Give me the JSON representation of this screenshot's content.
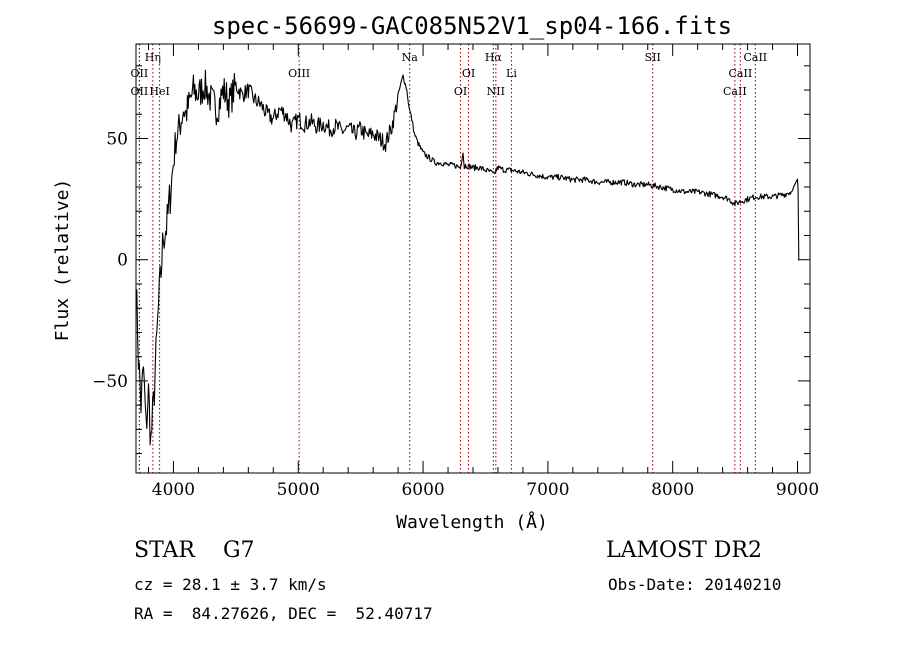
{
  "chart_data": {
    "type": "line",
    "title": "spec-56699-GAC085N52V1_sp04-166.fits",
    "xlabel": "Wavelength (Å)",
    "ylabel": "Flux (relative)",
    "xlim": [
      3700,
      9100
    ],
    "ylim": [
      -88,
      89
    ],
    "x_ticks": [
      4000,
      5000,
      6000,
      7000,
      8000,
      9000
    ],
    "x_tick_labels": [
      "4000",
      "5000",
      "6000",
      "7000",
      "8000",
      "9000"
    ],
    "y_ticks": [
      -50,
      0,
      50
    ],
    "y_tick_labels": [
      "−50",
      "0",
      "50"
    ],
    "line_color": "#000000",
    "marker_color": "#8b0000",
    "series": [
      {
        "x": [
          3700,
          3720,
          3740,
          3760,
          3780,
          3800,
          3820,
          3840,
          3860,
          3880,
          3900,
          3920,
          3950,
          3980,
          4000,
          4020,
          4050,
          4080,
          4100,
          4130,
          4160,
          4200,
          4250,
          4300,
          4350,
          4400,
          4450,
          4500,
          4550,
          4600,
          4650,
          4700,
          4750,
          4800,
          4850,
          4900,
          4950,
          5000,
          5050,
          5100,
          5150,
          5200,
          5250,
          5300,
          5350,
          5400,
          5450,
          5500,
          5550,
          5600,
          5650,
          5700,
          5750,
          5780,
          5810,
          5840,
          5870,
          5890,
          5910,
          5930,
          5960,
          6000,
          6050,
          6100,
          6150,
          6200,
          6250,
          6300,
          6320,
          6330,
          6340,
          6400,
          6450,
          6500,
          6550,
          6563,
          6600,
          6650,
          6700,
          6800,
          6900,
          7000,
          7100,
          7200,
          7300,
          7400,
          7500,
          7600,
          7700,
          7800,
          7900,
          8000,
          8100,
          8200,
          8300,
          8400,
          8450,
          8498,
          8542,
          8600,
          8662,
          8700,
          8800,
          8900,
          8950,
          9000,
          9005,
          9010
        ],
        "y": [
          -10,
          -40,
          -60,
          -45,
          -70,
          -55,
          -75,
          -60,
          -40,
          -20,
          -5,
          10,
          15,
          30,
          40,
          50,
          55,
          62,
          60,
          65,
          70,
          68,
          72,
          66,
          62,
          70,
          65,
          72,
          68,
          70,
          66,
          64,
          60,
          58,
          62,
          60,
          55,
          58,
          56,
          57,
          55,
          56,
          54,
          55,
          53,
          54,
          52,
          54,
          51,
          52,
          50,
          48,
          55,
          62,
          70,
          76,
          70,
          62,
          58,
          52,
          48,
          44,
          42,
          40,
          40,
          39,
          39,
          38,
          45,
          38,
          39,
          38,
          38,
          37,
          36,
          35,
          38,
          37,
          37,
          36,
          35,
          34,
          34,
          33,
          33,
          32,
          32,
          32,
          31,
          31,
          30,
          29,
          28,
          28,
          27,
          26,
          25,
          23,
          24,
          25,
          26,
          26,
          26,
          27,
          28,
          33,
          28,
          0
        ]
      }
    ],
    "line_markers": [
      {
        "name": "OII",
        "x": 3727,
        "row": 2
      },
      {
        "name": "OII",
        "x": 3727,
        "row": 3
      },
      {
        "name": "Hη",
        "x": 3835,
        "row": 1
      },
      {
        "name": "HeI",
        "x": 3889,
        "row": 3
      },
      {
        "name": "OIII",
        "x": 5007,
        "row": 2
      },
      {
        "name": "Na",
        "x": 5893,
        "row": 1
      },
      {
        "name": "OI",
        "x": 6300,
        "row": 3
      },
      {
        "name": "OI",
        "x": 6364,
        "row": 2
      },
      {
        "name": "Hα",
        "x": 6563,
        "row": 1
      },
      {
        "name": "NII",
        "x": 6583,
        "row": 3
      },
      {
        "name": "Li",
        "x": 6708,
        "row": 2
      },
      {
        "name": "SII",
        "x": 7840,
        "row": 1
      },
      {
        "name": "CaII",
        "x": 8498,
        "row": 3
      },
      {
        "name": "CaII",
        "x": 8542,
        "row": 2
      },
      {
        "name": "CaII",
        "x": 8662,
        "row": 1
      }
    ]
  },
  "info": {
    "object_class": "STAR    G7",
    "survey": "LAMOST DR2",
    "redshift": "cz = 28.1 ± 3.7 km/s",
    "obs_date": "Obs-Date: 20140210",
    "coordinates": "RA =  84.27626, DEC =  52.40717"
  }
}
